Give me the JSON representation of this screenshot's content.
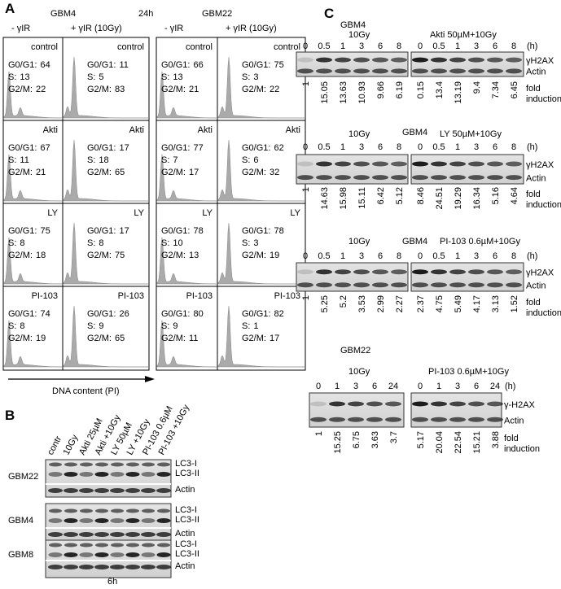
{
  "panel_a": {
    "label": "A",
    "cell_line_left": "GBM4",
    "time": "24h",
    "cell_line_right": "GBM22",
    "conditions": [
      "- γIR",
      "+ γIR (10Gy)"
    ],
    "stat_labels": [
      "G0/G1:",
      "S:",
      "G2/M:"
    ],
    "rows": [
      {
        "label": "control",
        "gbm4": [
          [
            64,
            13,
            22
          ],
          [
            11,
            5,
            83
          ]
        ],
        "gbm22": [
          [
            66,
            13,
            21
          ],
          [
            75,
            3,
            22
          ]
        ]
      },
      {
        "label": "Akti",
        "gbm4": [
          [
            67,
            11,
            21
          ],
          [
            17,
            18,
            65
          ]
        ],
        "gbm22": [
          [
            77,
            7,
            17
          ],
          [
            62,
            6,
            32
          ]
        ]
      },
      {
        "label": "LY",
        "gbm4": [
          [
            75,
            8,
            18
          ],
          [
            17,
            8,
            75
          ]
        ],
        "gbm22": [
          [
            78,
            10,
            13
          ],
          [
            78,
            3,
            19
          ]
        ]
      },
      {
        "label": "PI-103",
        "gbm4": [
          [
            74,
            8,
            19
          ],
          [
            26,
            9,
            65
          ]
        ],
        "gbm22": [
          [
            80,
            9,
            11
          ],
          [
            82,
            1,
            17
          ]
        ]
      }
    ],
    "x_label": "DNA content (PI)"
  },
  "panel_b": {
    "label": "B",
    "lanes": [
      "contr",
      "10Gy",
      "Akti 25µM",
      "Akti +10Gy",
      "LY 50µM",
      "LY +10Gy",
      "PI-103 0.6µM",
      "PI-103 +10Gy"
    ],
    "blots": [
      {
        "cell_line": "GBM22",
        "bands": [
          "LC3-I",
          "LC3-II",
          "Actin"
        ]
      },
      {
        "cell_line": "GBM4",
        "bands": [
          "LC3-I",
          "LC3-II",
          "Actin"
        ]
      },
      {
        "cell_line": "GBM8",
        "bands": [
          "LC3-I",
          "LC3-II",
          "Actin"
        ]
      }
    ],
    "time": "6h"
  },
  "panel_c": {
    "label": "C",
    "time_unit": "(h)",
    "fold_label": [
      "fold",
      "induction"
    ],
    "blocks": [
      {
        "cell_line": "GBM4",
        "bands": [
          "γH2AX",
          "Actin"
        ],
        "left": {
          "treatment": "10Gy",
          "times": [
            0,
            0.5,
            1,
            3,
            6,
            8
          ],
          "fold": [
            1,
            15.05,
            13.63,
            10.93,
            9.66,
            6.19
          ]
        },
        "right": {
          "treatment": "Akti 50µM+10Gy",
          "times": [
            0,
            0.5,
            1,
            3,
            6,
            8
          ],
          "fold": [
            0.15,
            13.4,
            13.19,
            9.4,
            7.34,
            6.45
          ]
        }
      },
      {
        "cell_line": "GBM4",
        "bands": [
          "γH2AX",
          "Actin"
        ],
        "left": {
          "treatment": "10Gy",
          "times": [
            0,
            0.5,
            1,
            3,
            6,
            8
          ],
          "fold": [
            1,
            14.63,
            15.98,
            15.11,
            6.42,
            5.12
          ]
        },
        "right": {
          "treatment": "LY 50µM+10Gy",
          "times": [
            0,
            0.5,
            1,
            3,
            6,
            8
          ],
          "fold": [
            8.46,
            24.51,
            19.29,
            16.34,
            5.16,
            4.64
          ]
        }
      },
      {
        "cell_line": "GBM4",
        "bands": [
          "γH2AX",
          "Actin"
        ],
        "left": {
          "treatment": "10Gy",
          "times": [
            0,
            0.5,
            1,
            3,
            6,
            8
          ],
          "fold": [
            1,
            5.25,
            5.2,
            3.53,
            2.99,
            2.27
          ]
        },
        "right": {
          "treatment": "PI-103 0.6µM+10Gy",
          "times": [
            0,
            0.5,
            1,
            3,
            6,
            8
          ],
          "fold": [
            2.37,
            4.75,
            5.49,
            4.17,
            3.13,
            1.52
          ]
        }
      },
      {
        "cell_line": "GBM22",
        "bands": [
          "γ-H2AX",
          "Actin"
        ],
        "left": {
          "treatment": "10Gy",
          "times": [
            0,
            1,
            3,
            6,
            24
          ],
          "fold": [
            1,
            15.25,
            6.75,
            3.63,
            3.7
          ]
        },
        "right": {
          "treatment": "PI-103 0.6µM+10Gy",
          "times": [
            0,
            1,
            3,
            6,
            24
          ],
          "fold": [
            5.17,
            20.04,
            22.54,
            15.21,
            3.88
          ]
        }
      }
    ]
  }
}
